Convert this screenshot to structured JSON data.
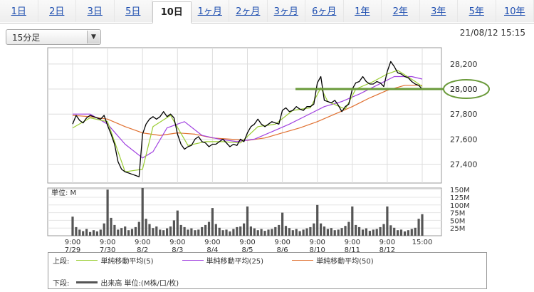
{
  "tabs": [
    "1日",
    "2日",
    "3日",
    "5日",
    "10日",
    "1ヶ月",
    "2ヶ月",
    "3ヶ月",
    "6ヶ月",
    "1年",
    "2年",
    "3年",
    "5年",
    "10年"
  ],
  "active_tab": 4,
  "interval_select": "15分足",
  "timestamp": "21/08/12 15:15",
  "legend": {
    "upper_label": "上段:",
    "ma5": "単純移動平均(5)",
    "ma25": "単純移動平均(25)",
    "ma50": "単純移動平均(50)",
    "lower_label": "下段:",
    "volume": "出来高 単位:(M株/口/枚)"
  },
  "colors": {
    "ma5": "#9acd32",
    "ma25": "#a040e0",
    "ma50": "#e07030",
    "price": "#000000",
    "volume": "#555555",
    "highlight": "#6a9a3a"
  },
  "chart_data": [
    {
      "type": "line",
      "title": "",
      "xlabel": "",
      "ylabel": "",
      "ylim": [
        27250,
        28330
      ],
      "y_ticks": [
        "28,200",
        "28,000",
        "27,800",
        "27,600",
        "27,400"
      ],
      "y_tick_values": [
        28200,
        28000,
        27800,
        27600,
        27400
      ],
      "x_ticks": [
        {
          "time": "9:00",
          "date": "7/29"
        },
        {
          "time": "9:00",
          "date": "7/30"
        },
        {
          "time": "9:00",
          "date": "8/2"
        },
        {
          "time": "9:00",
          "date": "8/3"
        },
        {
          "time": "9:00",
          "date": "8/4"
        },
        {
          "time": "9:00",
          "date": "8/5"
        },
        {
          "time": "9:00",
          "date": "8/6"
        },
        {
          "time": "9:00",
          "date": "8/10"
        },
        {
          "time": "9:00",
          "date": "8/11"
        },
        {
          "time": "9:00",
          "date": "8/12"
        },
        {
          "time": "15:00",
          "date": ""
        }
      ],
      "x_tick_positions": [
        0,
        1,
        2,
        3,
        4,
        5,
        6,
        7,
        8,
        9,
        10
      ],
      "highlight_level": 28000,
      "highlight_label": "28,000",
      "series": [
        {
          "name": "",
          "role": "price",
          "x": [
            0,
            0.1,
            0.2,
            0.3,
            0.4,
            0.5,
            0.6,
            0.7,
            0.8,
            0.9,
            1.0,
            1.1,
            1.2,
            1.3,
            1.4,
            1.5,
            1.6,
            1.7,
            1.8,
            1.9,
            2.0,
            2.1,
            2.2,
            2.3,
            2.4,
            2.5,
            2.6,
            2.7,
            2.8,
            2.9,
            3.0,
            3.1,
            3.2,
            3.3,
            3.4,
            3.5,
            3.6,
            3.7,
            3.8,
            3.9,
            4.0,
            4.1,
            4.2,
            4.3,
            4.4,
            4.5,
            4.6,
            4.7,
            4.8,
            4.9,
            5.0,
            5.1,
            5.2,
            5.3,
            5.4,
            5.5,
            5.6,
            5.7,
            5.8,
            5.9,
            6.0,
            6.1,
            6.2,
            6.3,
            6.4,
            6.5,
            6.6,
            6.7,
            6.8,
            6.9,
            7.0,
            7.1,
            7.2,
            7.3,
            7.4,
            7.5,
            7.6,
            7.7,
            7.8,
            7.9,
            8.0,
            8.1,
            8.2,
            8.3,
            8.4,
            8.5,
            8.6,
            8.7,
            8.8,
            8.9,
            9.0,
            9.1,
            9.2,
            9.3,
            9.4,
            9.5,
            9.6,
            9.7,
            9.8,
            9.9,
            10.0
          ],
          "values": [
            27720,
            27790,
            27750,
            27730,
            27770,
            27790,
            27780,
            27770,
            27760,
            27790,
            27710,
            27640,
            27560,
            27420,
            27360,
            27340,
            27330,
            27320,
            27310,
            27300,
            27640,
            27720,
            27760,
            27780,
            27760,
            27780,
            27820,
            27780,
            27800,
            27770,
            27640,
            27560,
            27520,
            27540,
            27550,
            27600,
            27620,
            27580,
            27570,
            27540,
            27560,
            27560,
            27580,
            27600,
            27570,
            27540,
            27560,
            27550,
            27600,
            27580,
            27650,
            27700,
            27720,
            27760,
            27720,
            27700,
            27720,
            27740,
            27730,
            27720,
            27830,
            27850,
            27820,
            27830,
            27860,
            27840,
            27830,
            27860,
            27860,
            27880,
            28050,
            28100,
            27910,
            27900,
            27890,
            27910,
            27870,
            27820,
            27860,
            27880,
            28000,
            28050,
            28060,
            28100,
            28060,
            28040,
            28040,
            28060,
            28050,
            28020,
            28140,
            28220,
            28180,
            28130,
            28120,
            28100,
            28090,
            28060,
            28040,
            28030,
            28000
          ]
        },
        {
          "name": "単純移動平均(5)",
          "role": "ma5",
          "x": [
            0,
            0.5,
            1.0,
            1.5,
            2.0,
            2.3,
            2.8,
            3.3,
            3.8,
            4.3,
            4.8,
            5.3,
            5.8,
            6.3,
            6.8,
            7.1,
            7.3,
            7.8,
            8.1,
            8.6,
            9.0,
            9.3,
            9.8,
            10.0
          ],
          "values": [
            27690,
            27770,
            27740,
            27340,
            27360,
            27700,
            27790,
            27550,
            27580,
            27580,
            27570,
            27700,
            27720,
            27830,
            27850,
            28010,
            27900,
            27840,
            28000,
            28060,
            28120,
            28150,
            28060,
            28020
          ]
        },
        {
          "name": "単純移動平均(25)",
          "role": "ma25",
          "x": [
            0,
            0.5,
            1.0,
            1.5,
            2.0,
            2.3,
            2.7,
            3.2,
            3.7,
            4.2,
            4.7,
            5.2,
            5.7,
            6.2,
            6.7,
            7.2,
            7.7,
            8.2,
            8.7,
            9.2,
            9.7,
            10.0
          ],
          "values": [
            27800,
            27800,
            27720,
            27560,
            27450,
            27500,
            27690,
            27740,
            27630,
            27600,
            27580,
            27600,
            27660,
            27720,
            27790,
            27860,
            27900,
            27960,
            28030,
            28100,
            28100,
            28080
          ]
        },
        {
          "name": "単純移動平均(50)",
          "role": "ma50",
          "x": [
            0,
            0.5,
            1.0,
            1.5,
            2.0,
            2.5,
            3.0,
            3.5,
            4.0,
            4.5,
            5.0,
            5.5,
            6.0,
            6.5,
            7.0,
            7.5,
            8.0,
            8.5,
            9.0,
            9.5,
            10.0
          ],
          "values": [
            27790,
            27780,
            27760,
            27700,
            27650,
            27630,
            27650,
            27640,
            27610,
            27600,
            27590,
            27610,
            27650,
            27690,
            27740,
            27800,
            27860,
            27930,
            27990,
            28030,
            28030
          ]
        },
        {
          "name": "",
          "role": "volume",
          "unit_label": "単位: M",
          "y_ticks": [
            "150M",
            "125M",
            "100M",
            "75M",
            "50M",
            "25M"
          ],
          "y_tick_values": [
            150,
            125,
            100,
            75,
            50,
            25
          ],
          "ylim": [
            0,
            155
          ],
          "x": [
            0,
            0.1,
            0.2,
            0.3,
            0.4,
            0.5,
            0.6,
            0.7,
            0.8,
            0.9,
            1.0,
            1.1,
            1.2,
            1.3,
            1.4,
            1.5,
            1.6,
            1.7,
            1.8,
            1.9,
            2.0,
            2.1,
            2.2,
            2.3,
            2.4,
            2.5,
            2.6,
            2.7,
            2.8,
            2.9,
            3.0,
            3.1,
            3.2,
            3.3,
            3.4,
            3.5,
            3.6,
            3.7,
            3.8,
            3.9,
            4.0,
            4.1,
            4.2,
            4.3,
            4.4,
            4.5,
            4.6,
            4.7,
            4.8,
            4.9,
            5.0,
            5.1,
            5.2,
            5.3,
            5.4,
            5.5,
            5.6,
            5.7,
            5.8,
            5.9,
            6.0,
            6.1,
            6.2,
            6.3,
            6.4,
            6.5,
            6.6,
            6.7,
            6.8,
            6.9,
            7.0,
            7.1,
            7.2,
            7.3,
            7.4,
            7.5,
            7.6,
            7.7,
            7.8,
            7.9,
            8.0,
            8.1,
            8.2,
            8.3,
            8.4,
            8.5,
            8.6,
            8.7,
            8.8,
            8.9,
            9.0,
            9.1,
            9.2,
            9.3,
            9.4,
            9.5,
            9.6,
            9.7,
            9.8,
            9.9,
            10.0
          ],
          "values": [
            62,
            28,
            20,
            15,
            22,
            12,
            18,
            14,
            20,
            40,
            150,
            58,
            35,
            20,
            25,
            30,
            18,
            22,
            28,
            45,
            155,
            55,
            38,
            25,
            30,
            20,
            18,
            24,
            30,
            50,
            82,
            35,
            28,
            20,
            24,
            18,
            20,
            28,
            35,
            45,
            90,
            38,
            26,
            18,
            20,
            14,
            22,
            28,
            30,
            40,
            95,
            30,
            24,
            18,
            22,
            16,
            20,
            22,
            28,
            35,
            75,
            32,
            25,
            18,
            22,
            15,
            20,
            24,
            28,
            40,
            100,
            40,
            30,
            22,
            25,
            18,
            20,
            25,
            32,
            45,
            95,
            35,
            28,
            20,
            24,
            16,
            20,
            22,
            28,
            38,
            95,
            34,
            26,
            18,
            20,
            14,
            18,
            22,
            26,
            55,
            70
          ]
        }
      ]
    }
  ]
}
